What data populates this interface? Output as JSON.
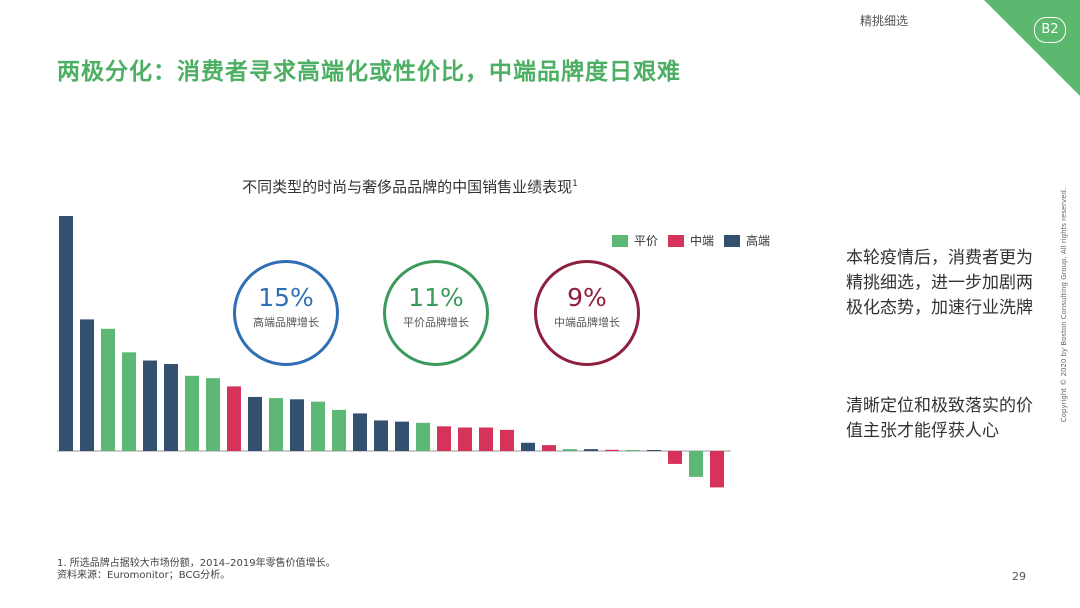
{
  "header": {
    "section": "精挑细选",
    "badge": "B2"
  },
  "title": "两极分化：消费者寻求高端化或性价比，中端品牌度日艰难",
  "chart_title": "不同类型的时尚与奢侈品品牌的中国销售业绩表现",
  "chart_title_sup": "1",
  "legend": [
    {
      "label": "平价",
      "color": "#5cb874"
    },
    {
      "label": "中端",
      "color": "#d6335a"
    },
    {
      "label": "高端",
      "color": "#33506e"
    }
  ],
  "circles": [
    {
      "pct": "15%",
      "label": "高端品牌增长",
      "color": "#2f6fb5"
    },
    {
      "pct": "11%",
      "label": "平价品牌增长",
      "color": "#3a9a5b"
    },
    {
      "pct": "9%",
      "label": "中端品牌增长",
      "color": "#8e1f3d"
    }
  ],
  "side_text": {
    "p1": "本轮疫情后，消费者更为精挑细选，进一步加剧两极化态势，加速行业洗牌",
    "p2": "清晰定位和极致落实的价值主张才能俘获人心"
  },
  "footnote": {
    "line1": "1. 所选品牌占据较大市场份额，2014–2019年零售价值增长。",
    "line2": "资料来源：Euromonitor；BCG分析。"
  },
  "page_number": "29",
  "copyright": "Copyright © 2020 by Boston Consulting Group. All rights reserved.",
  "chart_data": {
    "type": "bar",
    "xlabel": "",
    "ylabel": "",
    "grid": false,
    "ylim": [
      -0.19,
      1.0
    ],
    "tiers": [
      "高端",
      "高端",
      "平价",
      "平价",
      "高端",
      "高端",
      "平价",
      "平价",
      "中端",
      "高端",
      "平价",
      "高端",
      "平价",
      "平价",
      "高端",
      "高端",
      "高端",
      "平价",
      "中端",
      "中端",
      "中端",
      "中端",
      "高端",
      "中端",
      "平价",
      "高端",
      "中端",
      "平价",
      "高端",
      "中端",
      "平价",
      "中端"
    ],
    "values": [
      1.0,
      0.56,
      0.52,
      0.42,
      0.385,
      0.37,
      0.32,
      0.31,
      0.275,
      0.23,
      0.225,
      0.22,
      0.21,
      0.175,
      0.16,
      0.13,
      0.125,
      0.12,
      0.105,
      0.1,
      0.1,
      0.09,
      0.035,
      0.025,
      0.008,
      0.008,
      0.005,
      0.003,
      0.002,
      -0.055,
      -0.11,
      -0.155
    ]
  }
}
